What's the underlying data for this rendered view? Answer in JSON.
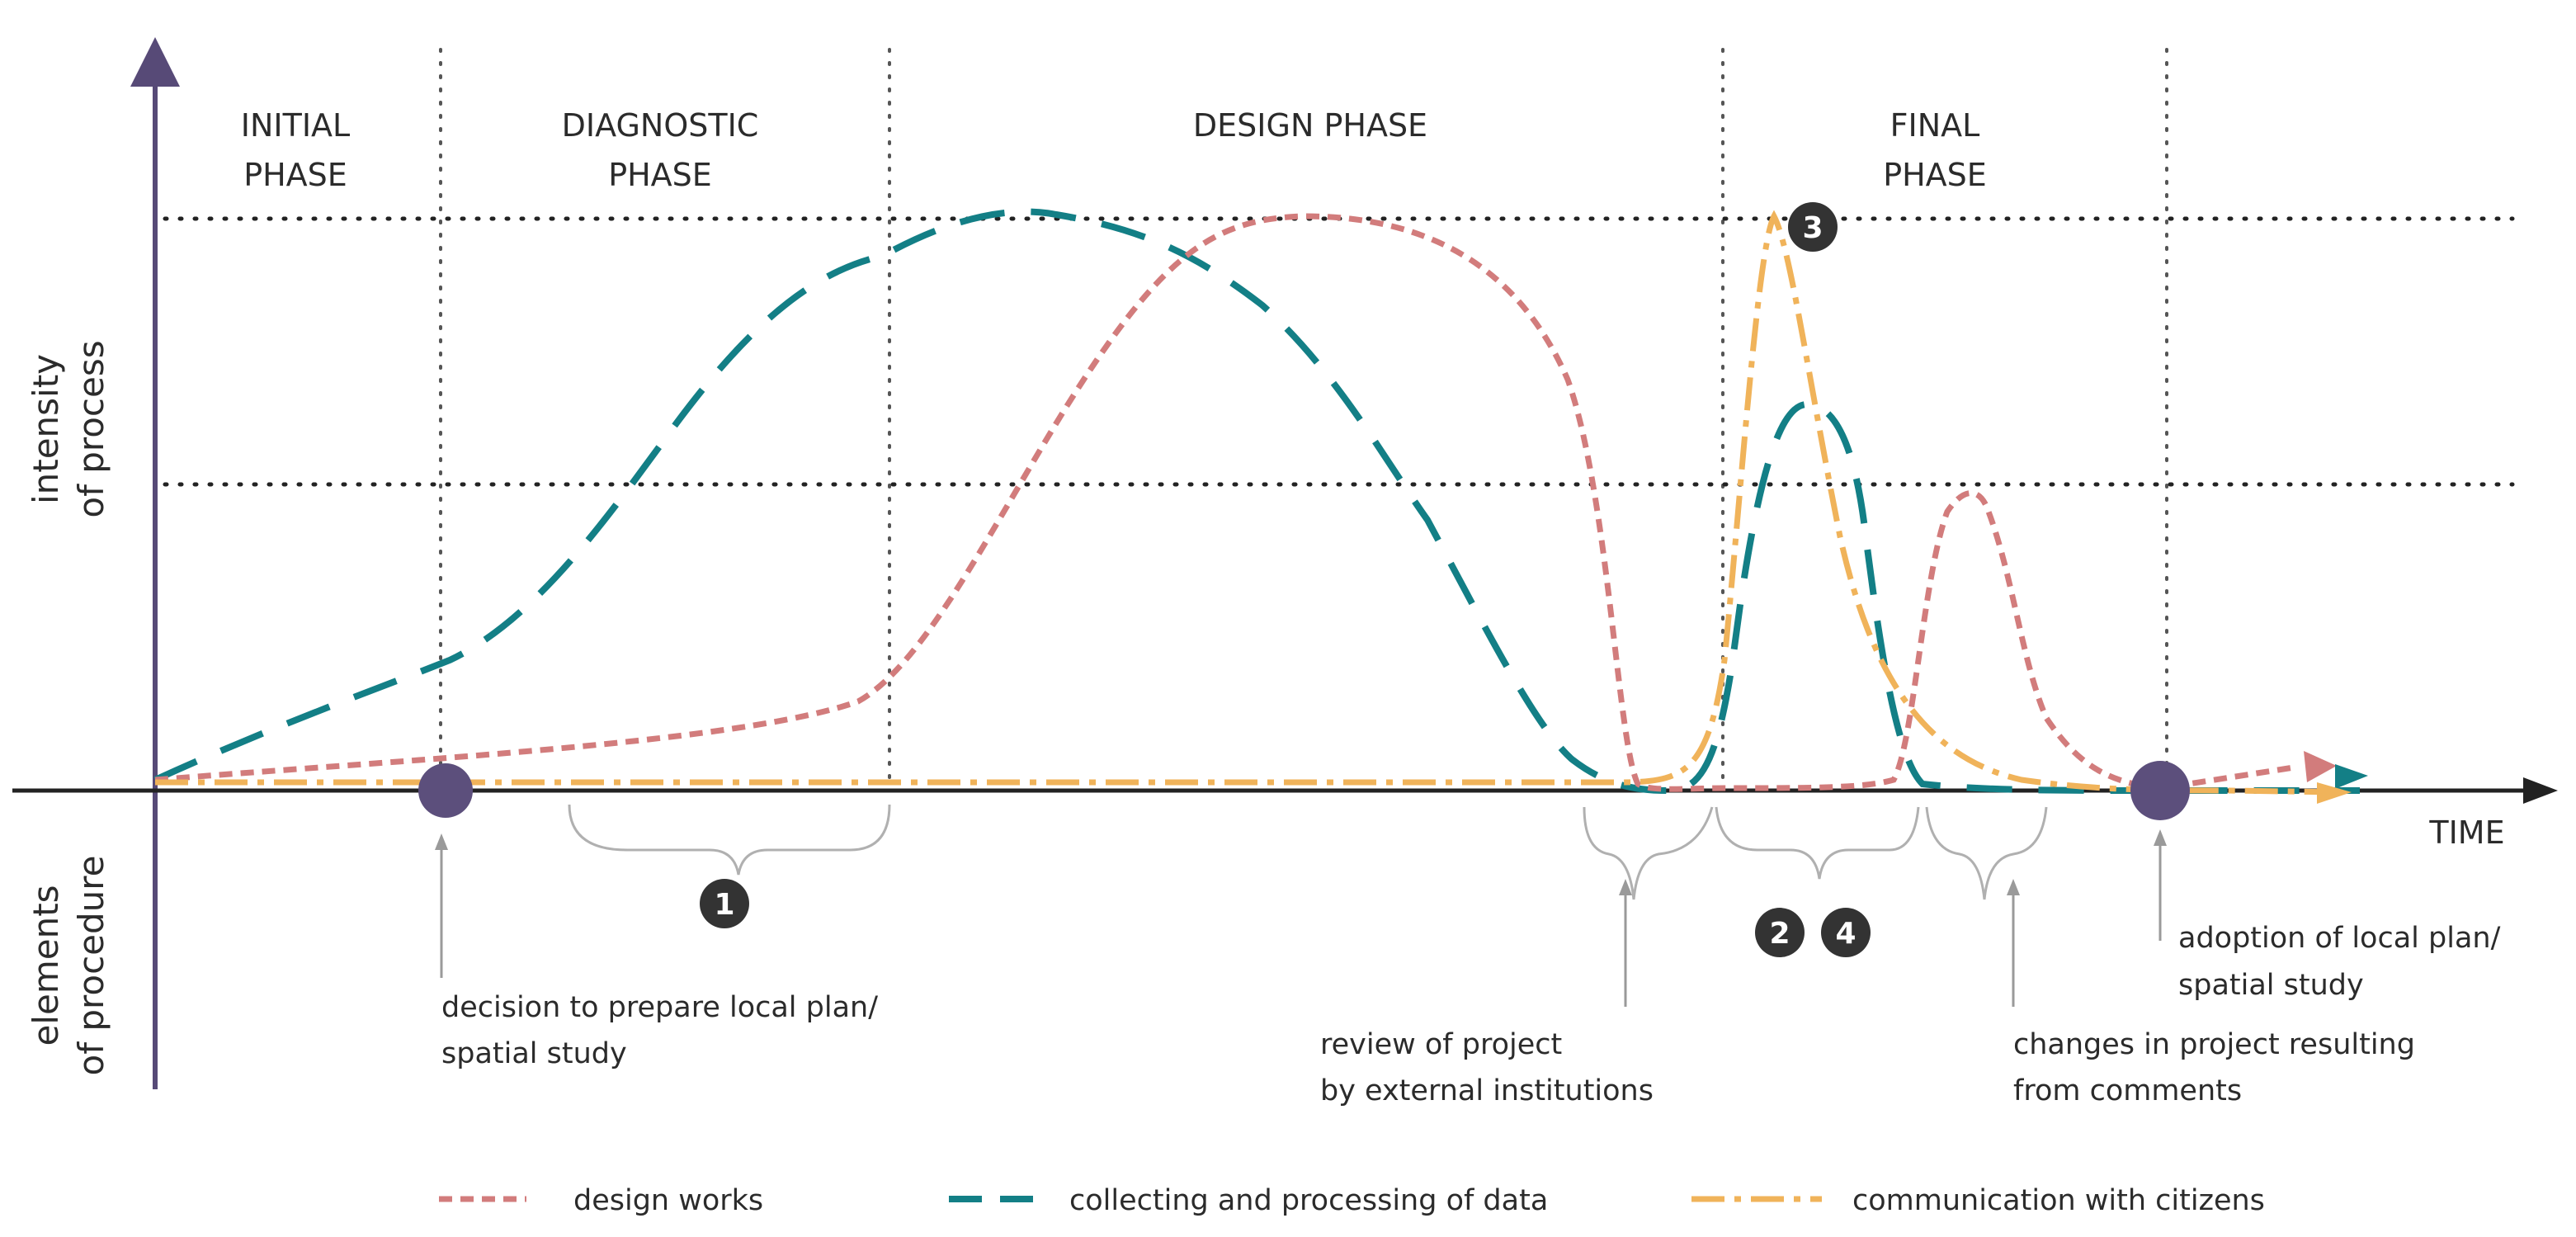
{
  "phases": {
    "initial": [
      "INITIAL",
      "PHASE"
    ],
    "diagnostic": [
      "DIAGNOSTIC",
      "PHASE"
    ],
    "design": "DESIGN PHASE",
    "final": [
      "FINAL",
      "PHASE"
    ]
  },
  "axes": {
    "y_upper": [
      "intensity",
      "of process"
    ],
    "y_lower": [
      "elements",
      "of procedure"
    ],
    "x": "TIME"
  },
  "markers": [
    "1",
    "2",
    "3",
    "4"
  ],
  "annotations": {
    "decision": [
      "decision to prepare local plan/",
      "spatial study"
    ],
    "review": [
      "review of project",
      "by external institutions"
    ],
    "adoption": [
      "adoption of local plan/",
      "spatial study"
    ],
    "changes": [
      "changes in project resulting",
      "from comments"
    ]
  },
  "legend": [
    {
      "label": "design works",
      "color": "#d27c7c",
      "style": "short-dash"
    },
    {
      "label": "collecting and processing of data",
      "color": "#137f86",
      "style": "long-dash"
    },
    {
      "label": "communication with citizens",
      "color": "#f0b35a",
      "style": "dash-dot"
    }
  ],
  "colors": {
    "axis": "#574a77",
    "milestone": "#5c4f7c",
    "marker_fill": "#333333"
  }
}
